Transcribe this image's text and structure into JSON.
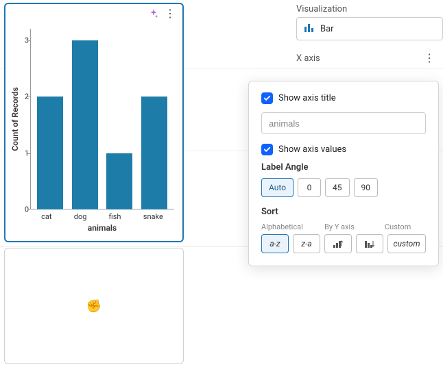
{
  "chart": {
    "type": "bar",
    "y_axis_title": "Count of Records",
    "x_axis_title": "animals",
    "categories": [
      "cat",
      "dog",
      "fish",
      "snake"
    ],
    "values": [
      2,
      3,
      1,
      2
    ],
    "bar_color": "#1e7da8",
    "card_border_color": "#1f77b4",
    "y_ticks": [
      0,
      1,
      2,
      3
    ],
    "ylim": [
      0,
      3.2
    ],
    "plot_bg": "#ffffff",
    "axis_color": "#888888",
    "tick_font_size": 11,
    "title_font_size": 12
  },
  "icons": {
    "sparkle_color": "#b26bd6",
    "grab_glyph": "✊"
  },
  "right_panel": {
    "viz_label": "Visualization",
    "viz_value": "Bar",
    "xaxis_label": "X axis"
  },
  "popup": {
    "show_axis_title_label": "Show axis title",
    "show_axis_title_checked": true,
    "axis_title_value": "animals",
    "show_axis_values_label": "Show axis values",
    "show_axis_values_checked": true,
    "label_angle_label": "Label Angle",
    "angle_options": [
      "Auto",
      "0",
      "45",
      "90"
    ],
    "angle_selected": "Auto",
    "sort_label": "Sort",
    "sort_headers": [
      "Alphabetical",
      "By Y axis",
      "Custom"
    ],
    "sort_alpha_options": [
      "a-z",
      "z-a"
    ],
    "sort_alpha_selected": "a-z",
    "sort_y_options": [
      "asc",
      "desc"
    ],
    "sort_custom_label": "custom",
    "checkbox_bg": "#0f62fe",
    "selected_btn_border": "#1f77b4",
    "selected_btn_bg": "#eaf3fb"
  }
}
